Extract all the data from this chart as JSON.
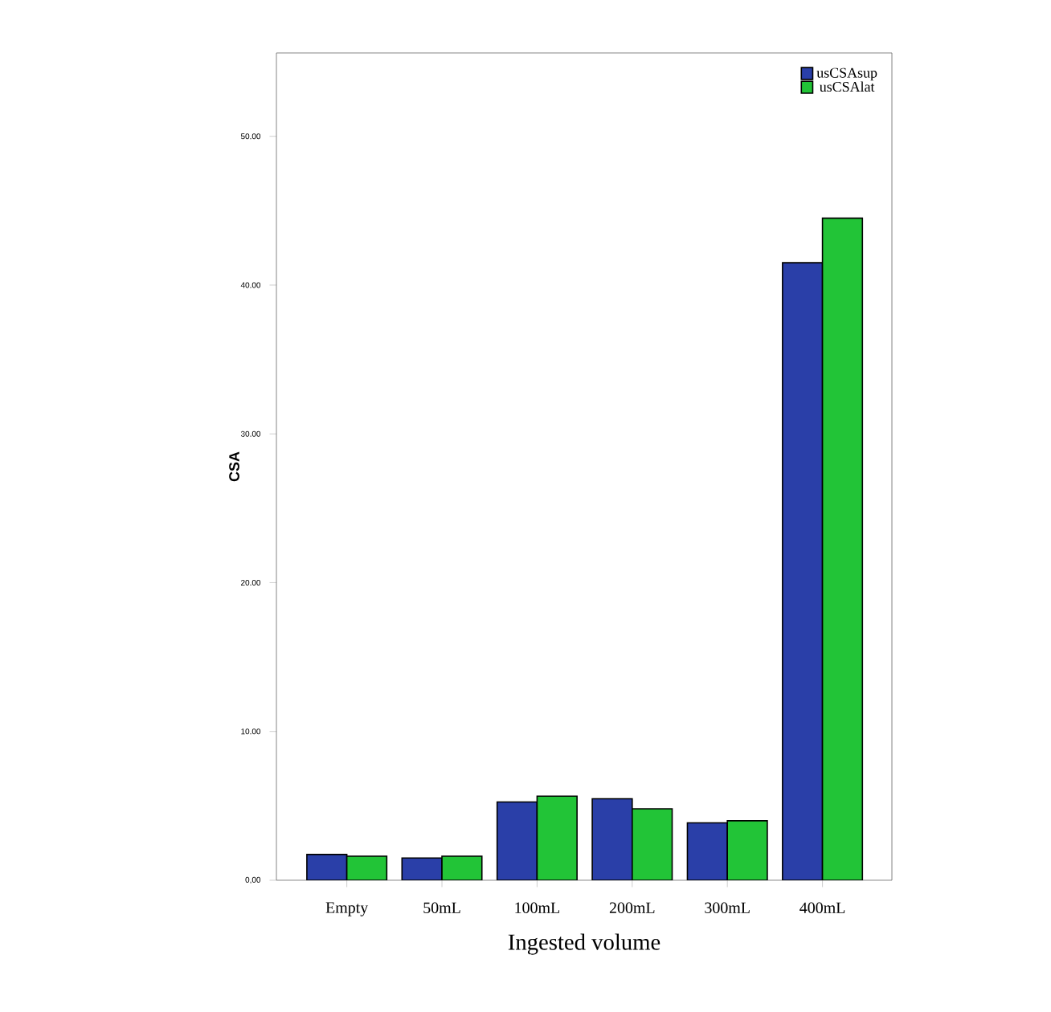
{
  "chart_data": {
    "type": "bar",
    "xlabel": "Ingested volume",
    "ylabel": "CSA",
    "categories": [
      "Empty",
      "50mL",
      "100mL",
      "200mL",
      "300mL",
      "400mL"
    ],
    "series": [
      {
        "name": "usCSAsup",
        "color": "#2a3fa8",
        "values": [
          1.73,
          1.5,
          5.26,
          5.48,
          3.86,
          41.5
        ]
      },
      {
        "name": "usCSAlat",
        "color": "#22c437",
        "values": [
          1.62,
          1.62,
          5.65,
          4.8,
          4.0,
          44.5
        ]
      }
    ],
    "ylim": [
      0,
      55.6
    ],
    "yticks": [
      {
        "value": 0,
        "label": "0,00"
      },
      {
        "value": 10,
        "label": "10.00"
      },
      {
        "value": 20,
        "label": "20.00"
      },
      {
        "value": 30,
        "label": "30.00"
      },
      {
        "value": 40,
        "label": "40.00"
      },
      {
        "value": 50,
        "label": "50.00"
      }
    ],
    "legend": "top right",
    "grid": false
  }
}
